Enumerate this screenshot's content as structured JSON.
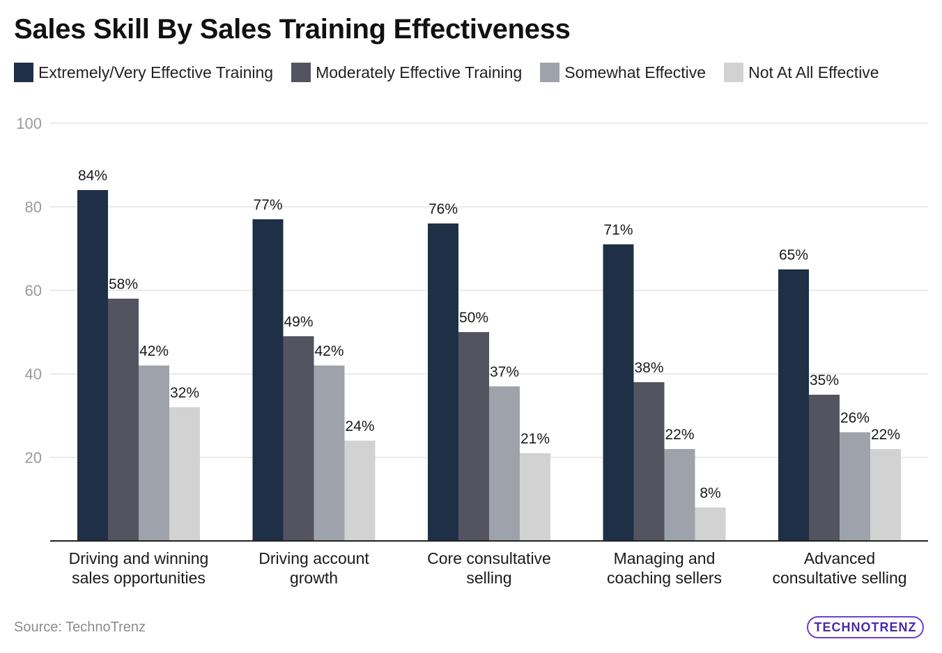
{
  "title": "Sales Skill By Sales Training Effectiveness",
  "source": "Source: TechnoTrenz",
  "brand": "TECHNOTRENZ",
  "colors": {
    "series": [
      "#1f3046",
      "#53545f",
      "#9ea3ab",
      "#d2d2d2"
    ],
    "grid": "#e3e3e3",
    "axis": "#222222",
    "tick": "#9a9a9a",
    "brand": "#6e3fd0"
  },
  "chart_data": {
    "type": "bar",
    "title": "Sales Skill By Sales Training Effectiveness",
    "xlabel": "",
    "ylabel": "",
    "ylim": [
      0,
      100
    ],
    "yticks": [
      20,
      40,
      60,
      80,
      100
    ],
    "grid": true,
    "legend_position": "top",
    "categories": [
      "Driving and winning sales opportunities",
      "Driving account growth",
      "Core consultative selling",
      "Managing and coaching sellers",
      "Advanced consultative selling"
    ],
    "category_lines": [
      [
        "Driving and winning",
        "sales opportunities"
      ],
      [
        "Driving account",
        "growth"
      ],
      [
        "Core consultative",
        "selling"
      ],
      [
        "Managing and",
        "coaching sellers"
      ],
      [
        "Advanced",
        "consultative selling"
      ]
    ],
    "series": [
      {
        "name": "Extremely/Very Effective Training",
        "values": [
          84,
          77,
          76,
          71,
          65
        ]
      },
      {
        "name": "Moderately Effective Training",
        "values": [
          58,
          49,
          50,
          38,
          35
        ]
      },
      {
        "name": "Somewhat Effective",
        "values": [
          42,
          42,
          37,
          22,
          26
        ]
      },
      {
        "name": "Not At All Effective",
        "values": [
          32,
          24,
          21,
          8,
          22
        ]
      }
    ],
    "value_suffix": "%"
  }
}
